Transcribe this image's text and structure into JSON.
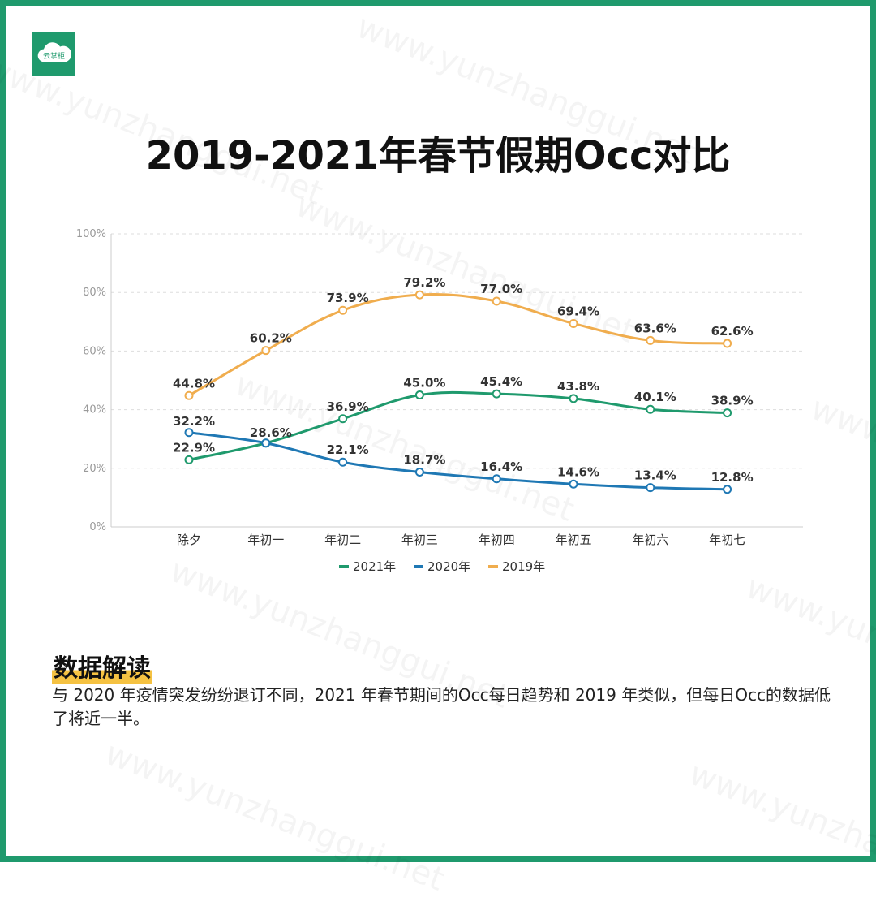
{
  "logo": {
    "text": "云掌柜"
  },
  "title": "2019-2021年春节假期Occ对比",
  "watermark": "www.yunzhanggui.net",
  "chart_data": {
    "type": "line",
    "categories": [
      "除夕",
      "年初一",
      "年初二",
      "年初三",
      "年初四",
      "年初五",
      "年初六",
      "年初七"
    ],
    "ylim": [
      0,
      100
    ],
    "yticks": [
      "0%",
      "20%",
      "40%",
      "60%",
      "80%",
      "100%"
    ],
    "grid": true,
    "legend_position": "bottom",
    "series": [
      {
        "name": "2021年",
        "color": "#1f9a6d",
        "values": [
          22.9,
          28.6,
          36.9,
          45.0,
          45.4,
          43.8,
          40.1,
          38.9
        ],
        "labels": [
          "22.9%",
          "28.6%",
          "36.9%",
          "45.0%",
          "45.4%",
          "43.8%",
          "40.1%",
          "38.9%"
        ]
      },
      {
        "name": "2020年",
        "color": "#1f78b4",
        "values": [
          32.2,
          28.6,
          22.1,
          18.7,
          16.4,
          14.6,
          13.4,
          12.8
        ],
        "labels": [
          "32.2%",
          "",
          "22.1%",
          "18.7%",
          "16.4%",
          "14.6%",
          "13.4%",
          "12.8%"
        ]
      },
      {
        "name": "2019年",
        "color": "#f0ad4e",
        "values": [
          44.8,
          60.2,
          73.9,
          79.2,
          77.0,
          69.4,
          63.6,
          62.6
        ],
        "labels": [
          "44.8%",
          "60.2%",
          "73.9%",
          "79.2%",
          "77.0%",
          "69.4%",
          "63.6%",
          "62.6%"
        ]
      }
    ]
  },
  "analysis": {
    "heading": "数据解读",
    "text": "与 2020 年疫情突发纷纷退订不同，2021 年春节期间的Occ每日趋势和 2019 年类似，但每日Occ的数据低了将近一半。"
  }
}
